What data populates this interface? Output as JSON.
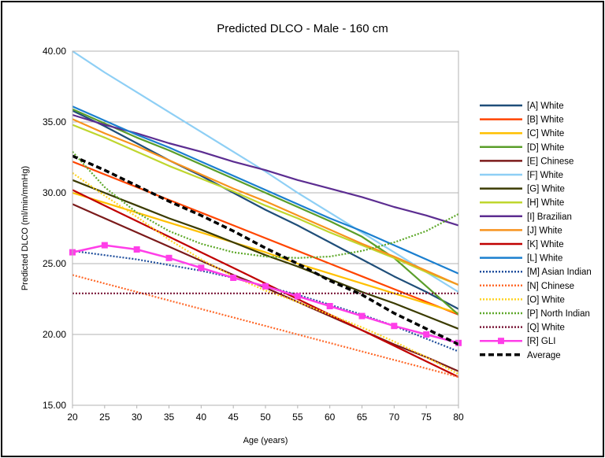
{
  "chart_data": {
    "type": "line",
    "title": "Predicted DLCO - Male - 160 cm",
    "xlabel": "Age (years)",
    "ylabel": "Predicted DLCO (ml/min/mmHg)",
    "xlim": [
      20,
      80
    ],
    "ylim": [
      15,
      40
    ],
    "xticks": [
      20,
      25,
      30,
      35,
      40,
      45,
      50,
      55,
      60,
      65,
      70,
      75,
      80
    ],
    "yticks": [
      15,
      20,
      25,
      30,
      35,
      40
    ],
    "ytick_labels": [
      "15.00",
      "20.00",
      "25.00",
      "30.00",
      "35.00",
      "40.00"
    ],
    "grid": true,
    "legend_position": "right",
    "x": [
      20,
      25,
      30,
      35,
      40,
      45,
      50,
      55,
      60,
      65,
      70,
      75,
      80
    ],
    "series": [
      {
        "name": "[A] White",
        "color": "#1f4e79",
        "dash": "solid",
        "values": [
          35.8,
          34.7,
          33.5,
          32.3,
          31.2,
          30.0,
          28.8,
          27.7,
          26.5,
          25.3,
          24.1,
          23.0,
          21.8
        ]
      },
      {
        "name": "[B] White",
        "color": "#ff4500",
        "dash": "solid",
        "values": [
          32.2,
          31.3,
          30.4,
          29.5,
          28.6,
          27.7,
          26.8,
          25.9,
          25.0,
          24.1,
          23.2,
          22.3,
          21.4
        ]
      },
      {
        "name": "[C] White",
        "color": "#ffc000",
        "dash": "solid",
        "values": [
          30.0,
          29.3,
          28.6,
          27.9,
          27.2,
          26.5,
          25.8,
          25.0,
          24.3,
          23.6,
          22.9,
          22.2,
          21.5
        ]
      },
      {
        "name": "[D] White",
        "color": "#5a9e2a",
        "dash": "solid",
        "values": [
          35.9,
          34.9,
          33.9,
          33.0,
          32.0,
          31.0,
          30.0,
          29.0,
          28.0,
          26.9,
          25.4,
          23.4,
          21.4
        ]
      },
      {
        "name": "[E] Chinese",
        "color": "#7b1a1a",
        "dash": "solid",
        "values": [
          29.2,
          28.2,
          27.2,
          26.2,
          25.2,
          24.2,
          23.3,
          22.3,
          21.3,
          20.3,
          19.3,
          18.4,
          17.4
        ]
      },
      {
        "name": "[F] White",
        "color": "#8ecff5",
        "dash": "solid",
        "values": [
          40.0,
          38.5,
          37.1,
          35.7,
          34.3,
          32.9,
          31.5,
          30.0,
          28.6,
          27.2,
          25.8,
          24.4,
          23.0
        ]
      },
      {
        "name": "[G] White",
        "color": "#3b3b00",
        "dash": "solid",
        "values": [
          30.9,
          30.0,
          29.1,
          28.2,
          27.4,
          26.5,
          25.6,
          24.8,
          23.9,
          23.0,
          22.2,
          21.3,
          20.4
        ]
      },
      {
        "name": "[H] White",
        "color": "#bfd62e",
        "dash": "solid",
        "values": [
          34.8,
          33.9,
          32.9,
          31.9,
          31.0,
          30.1,
          29.1,
          28.2,
          27.2,
          26.3,
          25.4,
          24.4,
          23.5
        ]
      },
      {
        "name": "[I] Brazilian",
        "color": "#5c2d91",
        "dash": "solid",
        "values": [
          35.5,
          34.8,
          34.2,
          33.5,
          32.9,
          32.2,
          31.6,
          30.9,
          30.3,
          29.7,
          29.0,
          28.4,
          27.7
        ]
      },
      {
        "name": "[J] White",
        "color": "#f7931e",
        "dash": "solid",
        "values": [
          35.2,
          34.2,
          33.3,
          32.3,
          31.3,
          30.3,
          29.4,
          28.4,
          27.4,
          26.4,
          25.5,
          24.5,
          23.5
        ]
      },
      {
        "name": "[K] White",
        "color": "#c00000",
        "dash": "solid",
        "values": [
          30.2,
          29.1,
          28.0,
          26.9,
          25.8,
          24.7,
          23.6,
          22.5,
          21.4,
          20.3,
          19.2,
          18.1,
          17.0
        ]
      },
      {
        "name": "[L] White",
        "color": "#1b7fcf",
        "dash": "solid",
        "values": [
          36.1,
          35.1,
          34.1,
          33.2,
          32.2,
          31.2,
          30.2,
          29.2,
          28.2,
          27.3,
          26.3,
          25.3,
          24.3
        ]
      },
      {
        "name": "[M] Asian Indian",
        "color": "#1f4e9c",
        "dash": "dot",
        "values": [
          25.9,
          25.6,
          25.3,
          24.9,
          24.5,
          24.0,
          23.4,
          22.8,
          22.1,
          21.4,
          20.6,
          19.7,
          18.8
        ]
      },
      {
        "name": "[N] Chinese",
        "color": "#ff6a2b",
        "dash": "dot",
        "values": [
          24.2,
          23.6,
          23.0,
          22.4,
          21.8,
          21.2,
          20.6,
          20.0,
          19.4,
          18.8,
          18.2,
          17.6,
          17.0
        ]
      },
      {
        "name": "[O] White",
        "color": "#ffd320",
        "dash": "dot",
        "values": [
          31.4,
          29.8,
          28.3,
          26.7,
          25.3,
          24.1,
          23.1,
          22.3,
          21.4,
          20.5,
          19.5,
          18.4,
          17.2
        ]
      },
      {
        "name": "[P] North Indian",
        "color": "#5ea82a",
        "dash": "dot",
        "values": [
          32.9,
          30.4,
          28.6,
          27.3,
          26.4,
          25.8,
          25.5,
          25.4,
          25.5,
          25.9,
          26.5,
          27.3,
          28.5
        ]
      },
      {
        "name": "[Q] White",
        "color": "#7b1a3a",
        "dash": "dot",
        "values": [
          22.9,
          22.9,
          22.9,
          22.9,
          22.9,
          22.9,
          22.9,
          22.9,
          22.9,
          22.9,
          22.9,
          22.9,
          22.9
        ]
      },
      {
        "name": "[R] GLI",
        "color": "#ff3ee8",
        "dash": "solid",
        "markers": true,
        "values": [
          25.8,
          26.3,
          26.0,
          25.4,
          24.7,
          24.0,
          23.4,
          22.7,
          22.0,
          21.3,
          20.6,
          20.0,
          19.4
        ]
      },
      {
        "name": "Average",
        "color": "#000000",
        "dash": "dash",
        "values": [
          32.6,
          31.6,
          30.5,
          29.4,
          28.4,
          27.3,
          26.1,
          25.0,
          23.8,
          22.8,
          21.5,
          20.4,
          19.3
        ]
      }
    ]
  }
}
